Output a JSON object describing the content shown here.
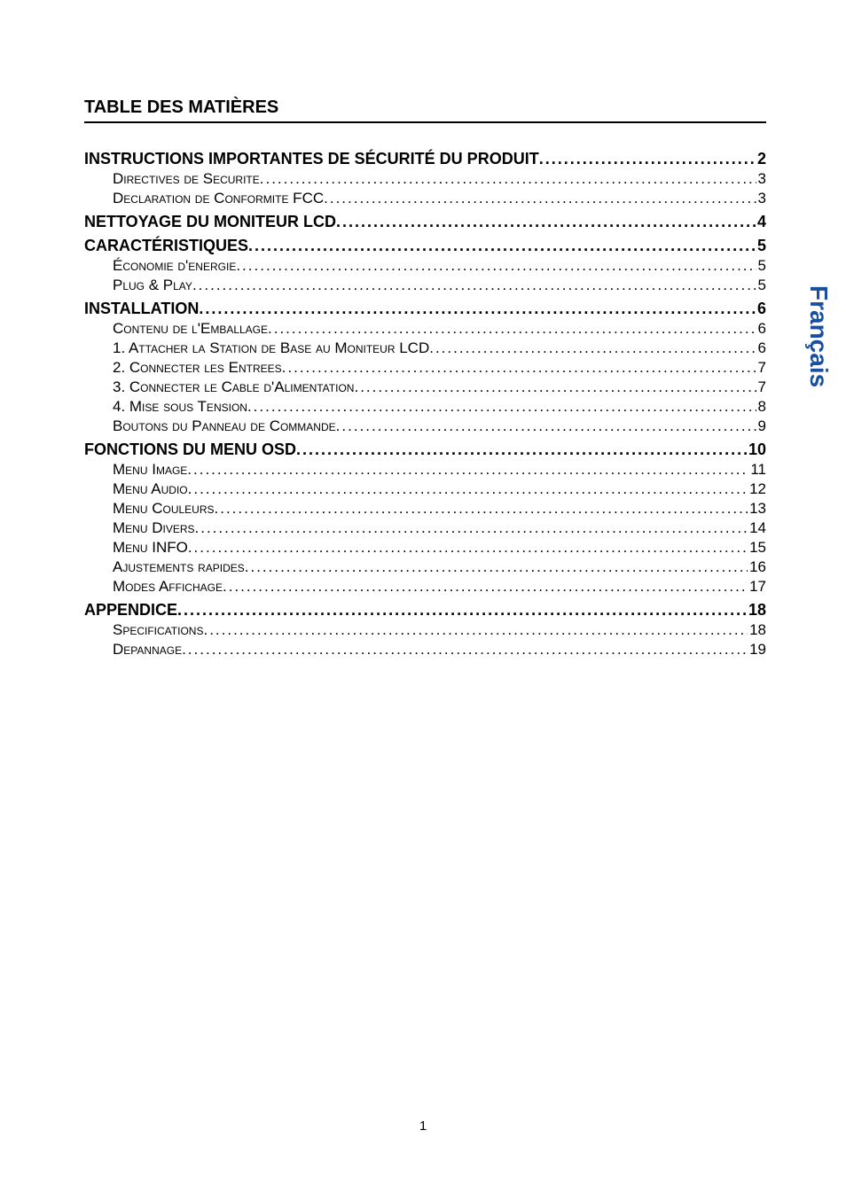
{
  "heading": "TABLE DES MATIÈRES",
  "sidetab": {
    "text": "Français",
    "color": "#1a4ea0",
    "fontsize_pt": 21
  },
  "footer_page_number": "1",
  "typography": {
    "heading_fontsize_pt": 15,
    "l1_fontsize_pt": 14,
    "l2_fontsize_pt": 13,
    "font_family": "Arial",
    "text_color": "#000000",
    "background_color": "#ffffff",
    "hr_color": "#000000"
  },
  "toc": [
    {
      "level": 1,
      "label": "INSTRUCTIONS IMPORTANTES DE SÉCURITÉ DU PRODUIT",
      "page": "2"
    },
    {
      "level": 2,
      "label": "Directives de Securite",
      "page": "3"
    },
    {
      "level": 2,
      "label": "Declaration de Conformite FCC",
      "page": "3"
    },
    {
      "level": 1,
      "label": "NETTOYAGE DU MONITEUR LCD",
      "page": "4"
    },
    {
      "level": 1,
      "label": "CARACTÉRISTIQUES",
      "page": "5"
    },
    {
      "level": 2,
      "label": "Économie d'energie",
      "page": "5"
    },
    {
      "level": 2,
      "label": "Plug & Play",
      "page": "5"
    },
    {
      "level": 1,
      "label": "INSTALLATION",
      "page": "6"
    },
    {
      "level": 2,
      "label": "Contenu de l'Emballage",
      "page": "6"
    },
    {
      "level": 2,
      "label": "1. Attacher la Station de Base au Moniteur LCD",
      "page": "6"
    },
    {
      "level": 2,
      "label": "2. Connecter les Entrees",
      "page": "7"
    },
    {
      "level": 2,
      "label": "3. Connecter le Cable d'Alimentation",
      "page": "7"
    },
    {
      "level": 2,
      "label": "4. Mise sous Tension",
      "page": "8"
    },
    {
      "level": 2,
      "label": "Boutons du Panneau de Commande",
      "page": "9"
    },
    {
      "level": 1,
      "label": "FONCTIONS DU MENU OSD",
      "page": "10"
    },
    {
      "level": 2,
      "label": "Menu Image",
      "page": "11"
    },
    {
      "level": 2,
      "label": "Menu Audio",
      "page": "12"
    },
    {
      "level": 2,
      "label": "Menu Couleurs",
      "page": "13"
    },
    {
      "level": 2,
      "label": "Menu Divers",
      "page": "14"
    },
    {
      "level": 2,
      "label": "Menu INFO",
      "page": "15"
    },
    {
      "level": 2,
      "label": "Ajustements rapides",
      "page": "16"
    },
    {
      "level": 2,
      "label": "Modes Affichage",
      "page": "17"
    },
    {
      "level": 1,
      "label": "APPENDICE",
      "page": "18"
    },
    {
      "level": 2,
      "label": "Specifications",
      "page": "18"
    },
    {
      "level": 2,
      "label": "Depannage",
      "page": "19"
    }
  ]
}
